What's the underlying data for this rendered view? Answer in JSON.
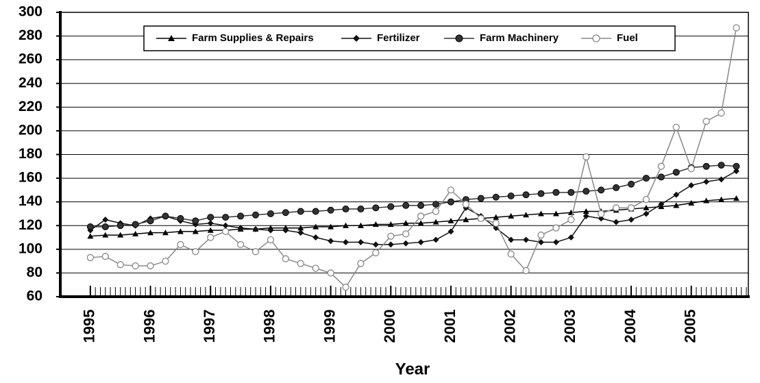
{
  "chart_data": {
    "type": "line",
    "x_label": "Year",
    "x": [
      1995,
      1995.25,
      1995.5,
      1995.75,
      1996,
      1996.25,
      1996.5,
      1996.75,
      1997,
      1997.25,
      1997.5,
      1997.75,
      1998,
      1998.25,
      1998.5,
      1998.75,
      1999,
      1999.25,
      1999.5,
      1999.75,
      2000,
      2000.25,
      2000.5,
      2000.75,
      2001,
      2001.25,
      2001.5,
      2001.75,
      2002,
      2002.25,
      2002.5,
      2002.75,
      2003,
      2003.25,
      2003.5,
      2003.75,
      2004,
      2004.25,
      2004.5,
      2004.75,
      2005,
      2005.25,
      2005.5,
      2005.75
    ],
    "xlim": [
      1994.5,
      2005.95
    ],
    "xticks": [
      1995,
      1996,
      1997,
      1998,
      1999,
      2000,
      2001,
      2002,
      2003,
      2004,
      2005
    ],
    "ylim": [
      60,
      300
    ],
    "yticks": [
      60,
      80,
      100,
      120,
      140,
      160,
      180,
      200,
      220,
      240,
      260,
      280,
      300
    ],
    "grid": true,
    "legend": "top",
    "series": [
      {
        "name": "Farm Supplies & Repairs",
        "color": "#000000",
        "marker": "triangle",
        "values": [
          111,
          112,
          112,
          113,
          114,
          114,
          115,
          115,
          116,
          116,
          117,
          117,
          118,
          118,
          118,
          119,
          119,
          120,
          120,
          121,
          121,
          122,
          122,
          123,
          124,
          125,
          126,
          127,
          128,
          129,
          130,
          130,
          131,
          132,
          132,
          133,
          134,
          135,
          136,
          137,
          139,
          141,
          142,
          143
        ]
      },
      {
        "name": "Fertilizer",
        "color": "#111111",
        "marker": "diamond",
        "values": [
          116,
          125,
          122,
          120,
          126,
          128,
          124,
          121,
          122,
          120,
          118,
          117,
          116,
          116,
          114,
          110,
          107,
          106,
          106,
          104,
          104,
          105,
          106,
          108,
          115,
          135,
          128,
          118,
          108,
          108,
          106,
          106,
          110,
          128,
          126,
          123,
          125,
          130,
          138,
          146,
          154,
          157,
          159,
          166
        ]
      },
      {
        "name": "Farm Machinery",
        "color": "#333333",
        "marker": "circle",
        "values": [
          119,
          119,
          120,
          121,
          124,
          128,
          126,
          124,
          127,
          127,
          128,
          129,
          130,
          131,
          132,
          132,
          133,
          134,
          134,
          135,
          136,
          137,
          137,
          138,
          140,
          142,
          143,
          144,
          145,
          146,
          147,
          148,
          148,
          149,
          150,
          152,
          155,
          160,
          161,
          165,
          169,
          170,
          171,
          170
        ]
      },
      {
        "name": "Fuel",
        "color": "#888888",
        "marker": "open-circle",
        "values": [
          93,
          94,
          87,
          86,
          86,
          90,
          104,
          98,
          110,
          115,
          104,
          98,
          108,
          92,
          88,
          84,
          80,
          68,
          88,
          97,
          111,
          113,
          128,
          132,
          150,
          138,
          126,
          122,
          96,
          82,
          112,
          118,
          125,
          178,
          130,
          135,
          135,
          142,
          170,
          203,
          168,
          208,
          215,
          287
        ]
      }
    ]
  }
}
